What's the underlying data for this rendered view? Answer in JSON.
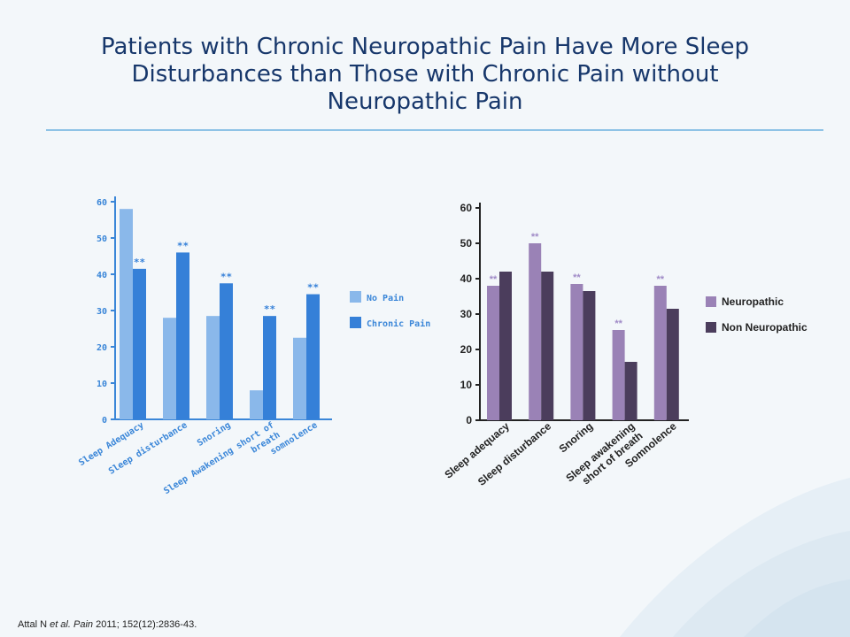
{
  "title_lines": [
    "Patients with Chronic Neuropathic Pain Have More Sleep",
    "Disturbances than Those with Chronic Pain without",
    "Neuropathic Pain"
  ],
  "citation": {
    "authors": "Attal N",
    "etal": "et al.",
    "journal": "Pain",
    "rest": "2011; 152(12):2836-43."
  },
  "colors": {
    "title": "#17376b",
    "rule": "#8fc3e6",
    "left_light": "#8ab8ea",
    "left_dark": "#3580d8",
    "left_axis": "#3a86d8",
    "right_light": "#9a82b6",
    "right_dark": "#4b3d5c",
    "right_star": "#a08bc7"
  },
  "chart_data": [
    {
      "type": "bar",
      "title": "",
      "xlabel": "",
      "ylabel": "",
      "ylim": [
        0,
        60
      ],
      "yticks": [
        "0",
        "10",
        "20",
        "30",
        "40",
        "50",
        "60"
      ],
      "categories": [
        "Sleep Adequacy",
        "Sleep disturbance",
        "Snoring",
        "Sleep Awakening short of breath",
        "somnolence"
      ],
      "series": [
        {
          "name": "No Pain",
          "values": [
            58,
            28,
            28.5,
            8,
            22.5
          ]
        },
        {
          "name": "Chronic Pain",
          "values": [
            41.5,
            46,
            37.5,
            28.5,
            34.5
          ]
        }
      ],
      "annotations": [
        "**",
        "**",
        "**",
        "**",
        "**"
      ],
      "legend_position": "right"
    },
    {
      "type": "bar",
      "title": "",
      "xlabel": "",
      "ylabel": "",
      "ylim": [
        0,
        60
      ],
      "yticks": [
        "0",
        "10",
        "20",
        "30",
        "40",
        "50",
        "60"
      ],
      "categories": [
        "Sleep adequacy",
        "Sleep disturbance",
        "Snoring",
        "Sleep awakening short of breath",
        "Somnolence"
      ],
      "series": [
        {
          "name": "Neuropathic",
          "values": [
            38,
            50,
            38.5,
            25.5,
            38
          ]
        },
        {
          "name": "Non Neuropathic",
          "values": [
            42,
            42,
            36.5,
            16.5,
            31.5
          ]
        }
      ],
      "annotations": [
        "**",
        "**",
        "**",
        "**",
        "**"
      ],
      "legend_position": "right"
    }
  ]
}
